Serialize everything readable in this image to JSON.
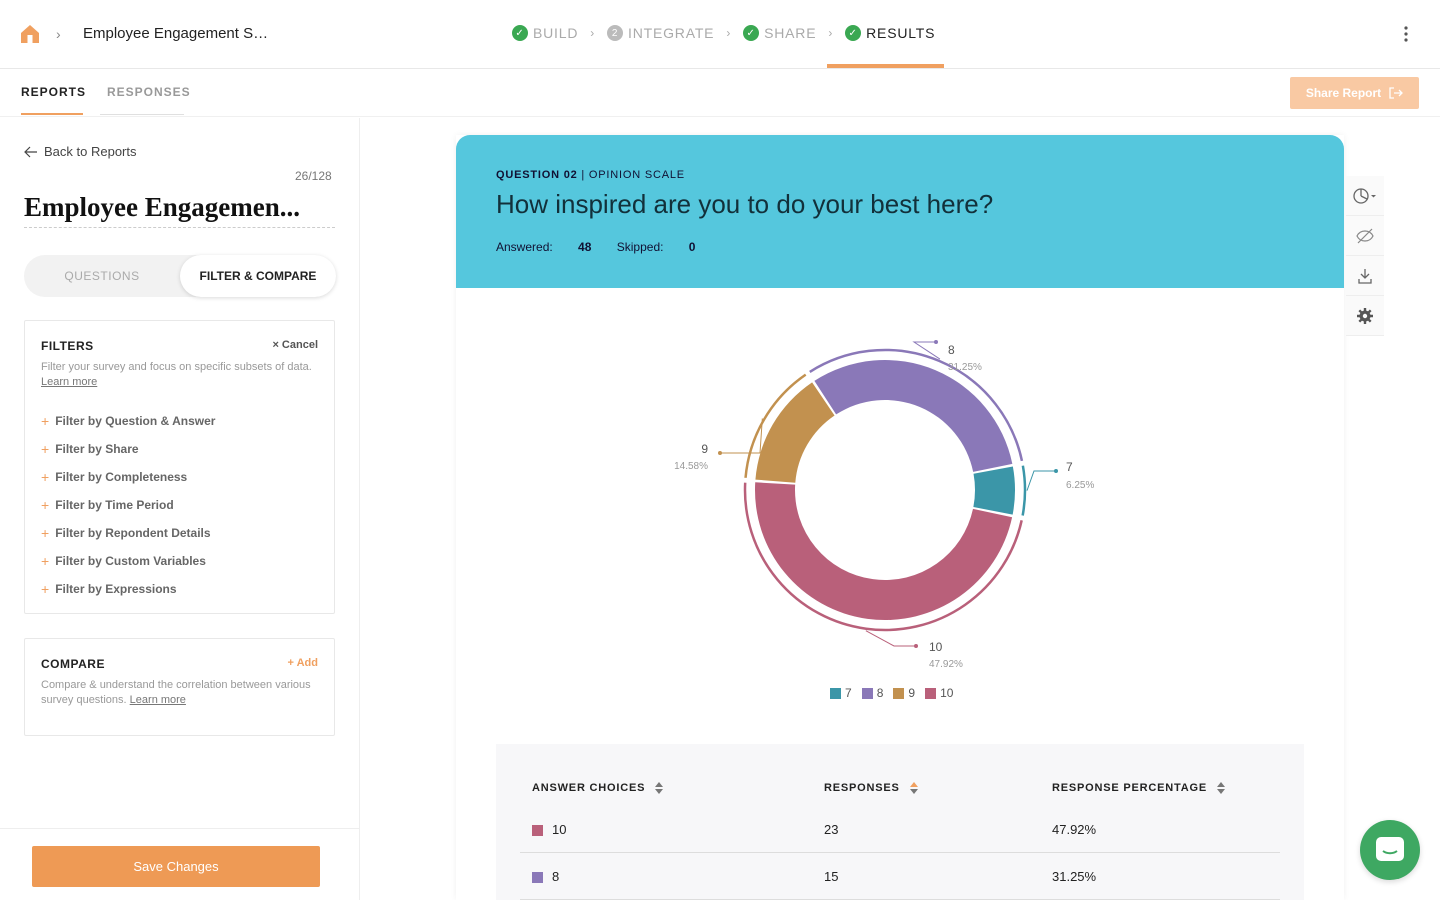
{
  "header": {
    "survey_title": "Employee Engagement S…",
    "steps": [
      {
        "label": "BUILD",
        "state": "done"
      },
      {
        "label": "INTEGRATE",
        "state": "pending",
        "number": "2"
      },
      {
        "label": "SHARE",
        "state": "done"
      },
      {
        "label": "RESULTS",
        "state": "active"
      }
    ]
  },
  "tabs": {
    "reports": "REPORTS",
    "responses": "RESPONSES",
    "share_report": "Share Report"
  },
  "sidebar": {
    "back": "Back to Reports",
    "counter": "26/128",
    "title": "Employee Engagemen...",
    "seg_questions": "QUESTIONS",
    "seg_filter": "FILTER & COMPARE",
    "filters": {
      "heading": "FILTERS",
      "cancel": "Cancel",
      "desc": "Filter your survey and focus on specific subsets of data.",
      "learn_more": "Learn more",
      "items": [
        "Filter by Question & Answer",
        "Filter by Share",
        "Filter by Completeness",
        "Filter by Time Period",
        "Filter by Repondent Details",
        "Filter by Custom Variables",
        "Filter by Expressions"
      ]
    },
    "compare": {
      "heading": "COMPARE",
      "add": "Add",
      "desc": "Compare & understand the correlation between various survey questions.",
      "learn_more": "Learn more"
    },
    "save": "Save Changes"
  },
  "question": {
    "number": "QUESTION 02",
    "type": "OPINION SCALE",
    "text": "How inspired are you to do your best here?",
    "answered_label": "Answered:",
    "answered": "48",
    "skipped_label": "Skipped:",
    "skipped": "0"
  },
  "chart_data": {
    "type": "pie",
    "style": "donut",
    "categories": [
      "7",
      "8",
      "9",
      "10"
    ],
    "values": [
      3,
      15,
      7,
      23
    ],
    "percent_labels": [
      "6.25%",
      "31.25%",
      "14.58%",
      "47.92%"
    ],
    "colors": [
      "#3b96a8",
      "#8a78b8",
      "#c2914f",
      "#b9607a"
    ]
  },
  "table": {
    "headers": [
      "ANSWER CHOICES",
      "RESPONSES",
      "RESPONSE PERCENTAGE"
    ],
    "rows": [
      {
        "choice": "10",
        "responses": "23",
        "pct": "47.92%",
        "color": "#b9607a"
      },
      {
        "choice": "8",
        "responses": "15",
        "pct": "31.25%",
        "color": "#8a78b8"
      }
    ]
  }
}
